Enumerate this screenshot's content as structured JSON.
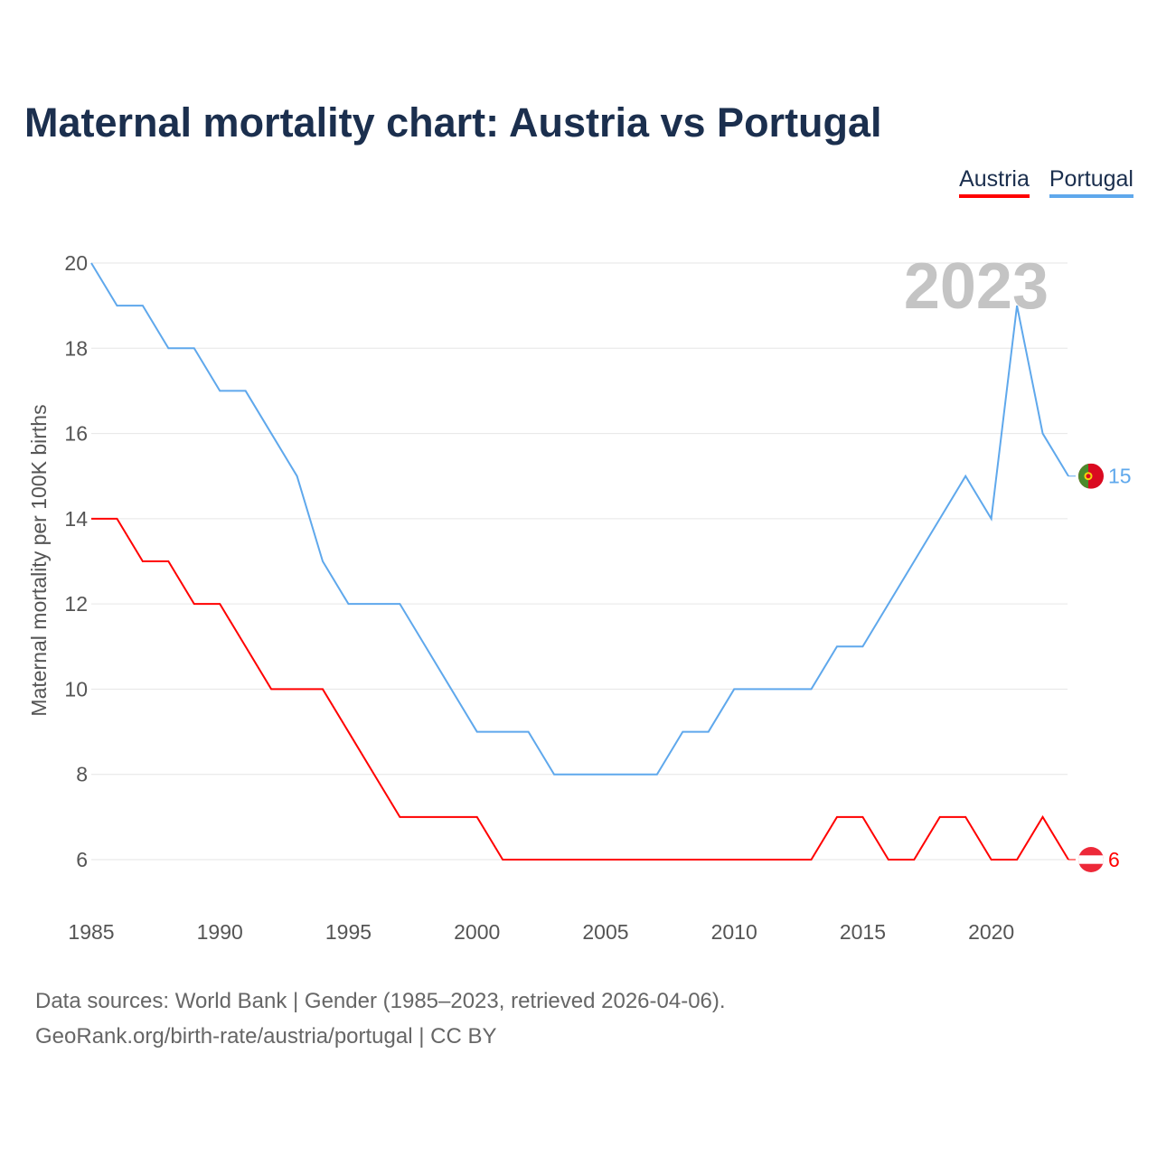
{
  "title": "Maternal mortality chart: Austria vs Portugal",
  "footer": {
    "line1": "Data sources: World Bank | Gender (1985–2023, retrieved 2026-04-06).",
    "line2": "GeoRank.org/birth-rate/austria/portugal | CC BY"
  },
  "chart_data": {
    "type": "line",
    "title": "Maternal mortality chart: Austria vs Portugal",
    "ylabel": "Maternal mortality per 100K births",
    "xlabel": "",
    "year_watermark": "2023",
    "xlim": [
      1985,
      2023
    ],
    "ylim": [
      5,
      20
    ],
    "xticks": [
      1985,
      1990,
      1995,
      2000,
      2005,
      2010,
      2015,
      2020
    ],
    "yticks": [
      6,
      8,
      10,
      12,
      14,
      16,
      18,
      20
    ],
    "grid": true,
    "legend_position": "top-right",
    "x": [
      1985,
      1986,
      1987,
      1988,
      1989,
      1990,
      1991,
      1992,
      1993,
      1994,
      1995,
      1996,
      1997,
      1998,
      1999,
      2000,
      2001,
      2002,
      2003,
      2004,
      2005,
      2006,
      2007,
      2008,
      2009,
      2010,
      2011,
      2012,
      2013,
      2014,
      2015,
      2016,
      2017,
      2018,
      2019,
      2020,
      2021,
      2022,
      2023
    ],
    "series": [
      {
        "name": "Austria",
        "color": "#ff0000",
        "end_label": "6",
        "values": [
          14,
          14,
          13,
          13,
          12,
          12,
          11,
          10,
          10,
          10,
          9,
          8,
          7,
          7,
          7,
          7,
          6,
          6,
          6,
          6,
          6,
          6,
          6,
          6,
          6,
          6,
          6,
          6,
          6,
          7,
          7,
          6,
          6,
          7,
          7,
          6,
          6,
          7,
          6
        ]
      },
      {
        "name": "Portugal",
        "color": "#5fa8ec",
        "end_label": "15",
        "values": [
          20,
          19,
          19,
          18,
          18,
          17,
          17,
          16,
          15,
          13,
          12,
          12,
          12,
          11,
          10,
          9,
          9,
          9,
          8,
          8,
          8,
          8,
          8,
          9,
          9,
          10,
          10,
          10,
          10,
          11,
          11,
          12,
          13,
          14,
          15,
          14,
          19,
          16,
          15
        ]
      }
    ]
  }
}
